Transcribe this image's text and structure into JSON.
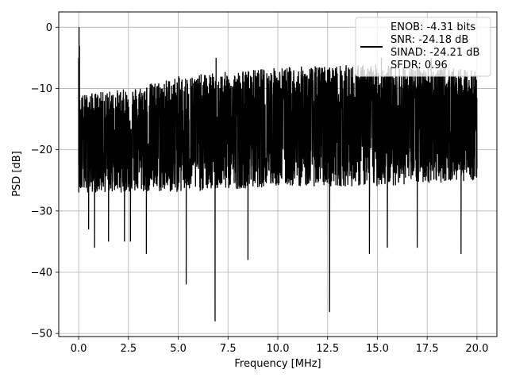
{
  "chart_data": {
    "type": "line",
    "title": "",
    "xlabel": "Frequency [MHz]",
    "ylabel": "PSD [dB]",
    "xlim": [
      -1.0,
      21.0
    ],
    "ylim": [
      -50.5,
      2.5
    ],
    "xticks": [
      0.0,
      2.5,
      5.0,
      7.5,
      10.0,
      12.5,
      15.0,
      17.5,
      20.0
    ],
    "xtick_labels": [
      "0.0",
      "2.5",
      "5.0",
      "7.5",
      "10.0",
      "12.5",
      "15.0",
      "17.5",
      "20.0"
    ],
    "yticks": [
      0,
      -10,
      -20,
      -30,
      -40,
      -50
    ],
    "ytick_labels": [
      "0",
      "−10",
      "−20",
      "−30",
      "−40",
      "−50"
    ],
    "grid": true,
    "legend_placement": "top-right",
    "line_color": "#000000",
    "series": [
      {
        "name": "",
        "legend_lines": [
          "ENOB: -4.31 bits",
          "SNR: -24.18 dB",
          "SINAD: -24.21 dB",
          "SFDR: 0.96"
        ],
        "x_range": [
          0.0,
          20.0
        ],
        "trend_center": [
          [
            0.0,
            -18
          ],
          [
            5.0,
            -17
          ],
          [
            10.0,
            -16.5
          ],
          [
            15.0,
            -15.5
          ],
          [
            20.0,
            -15
          ]
        ],
        "trend_upper": [
          [
            0.0,
            -11
          ],
          [
            2.5,
            -10
          ],
          [
            5.0,
            -8
          ],
          [
            10.0,
            -6.5
          ],
          [
            15.0,
            -6
          ],
          [
            20.0,
            -7
          ]
        ],
        "trend_lower": [
          [
            0.0,
            -27
          ],
          [
            5.0,
            -27
          ],
          [
            10.0,
            -26
          ],
          [
            15.0,
            -26
          ],
          [
            20.0,
            -25
          ]
        ],
        "points": [
          [
            0.0,
            -5
          ],
          [
            0.02,
            0
          ],
          [
            0.04,
            -3
          ],
          [
            0.06,
            -12
          ],
          [
            0.1,
            -17
          ],
          [
            0.15,
            -26
          ],
          [
            0.2,
            -20
          ],
          [
            0.5,
            -33
          ],
          [
            0.8,
            -36
          ],
          [
            1.5,
            -35
          ],
          [
            2.3,
            -35
          ],
          [
            2.6,
            -35
          ],
          [
            3.4,
            -37
          ],
          [
            5.4,
            -42
          ],
          [
            6.85,
            -48
          ],
          [
            8.5,
            -38
          ],
          [
            12.6,
            -46.5
          ],
          [
            14.6,
            -37
          ],
          [
            15.5,
            -36
          ],
          [
            17.0,
            -36
          ],
          [
            19.2,
            -37
          ],
          [
            17.7,
            -5
          ],
          [
            15.2,
            -5
          ],
          [
            6.9,
            -5
          ]
        ]
      }
    ]
  }
}
